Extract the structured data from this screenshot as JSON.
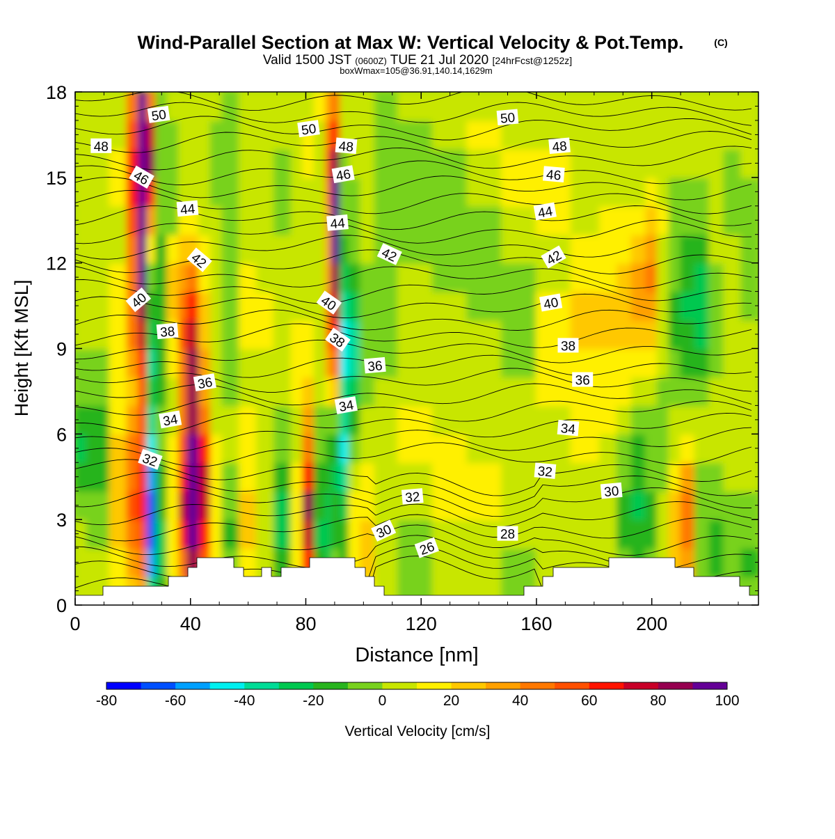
{
  "chart_data": {
    "type": "heatmap",
    "title": "Wind-Parallel Section at Max W: Vertical Velocity & Pot.Temp.",
    "title_mark": "(C)",
    "subtitle_parts": [
      "Valid 1500 JST",
      "(0600Z)",
      "TUE 21 Jul 2020",
      "[24hrFcst@1252z]"
    ],
    "subtitle2": "boxWmax=105@36.91,140.14,1629m",
    "xlabel": "Distance [nm]",
    "ylabel": "Height [Kft MSL]",
    "xlim": [
      0,
      237
    ],
    "ylim": [
      0,
      18
    ],
    "x_ticks": [
      0,
      40,
      80,
      120,
      160,
      200
    ],
    "y_ticks": [
      0,
      3,
      6,
      9,
      12,
      15,
      18
    ],
    "colorbar": {
      "label": "Vertical Velocity [cm/s]",
      "ticks": [
        -80,
        -60,
        -40,
        -20,
        0,
        20,
        40,
        60,
        80,
        100
      ],
      "range": [
        -80,
        100
      ],
      "colors": [
        "#0000ff",
        "#0050ff",
        "#00a0ff",
        "#00f0f0",
        "#00dc96",
        "#00c850",
        "#28b41e",
        "#78d21e",
        "#c8e600",
        "#fff000",
        "#ffc800",
        "#ffa000",
        "#ff7800",
        "#ff5000",
        "#ff1400",
        "#c80028",
        "#960050",
        "#640096"
      ]
    },
    "wind_speed_cells": [
      {
        "x": 0,
        "w": 4,
        "rows": [
          0,
          0,
          0,
          -5,
          -15,
          -25,
          -20,
          -10,
          -5,
          0,
          0,
          0,
          0,
          0,
          0,
          0,
          0,
          0
        ]
      },
      {
        "x": 4,
        "w": 8,
        "rows": [
          0,
          0,
          -5,
          -10,
          -18,
          -20,
          -15,
          -8,
          -2,
          2,
          5,
          5,
          0,
          0,
          0,
          0,
          5,
          5
        ]
      },
      {
        "x": 12,
        "w": 6,
        "rows": [
          10,
          15,
          20,
          25,
          25,
          20,
          15,
          10,
          10,
          15,
          15,
          10,
          5,
          5,
          10,
          10,
          5,
          5
        ]
      },
      {
        "x": 18,
        "w": 4,
        "rows": [
          25,
          35,
          45,
          50,
          45,
          40,
          30,
          25,
          30,
          40,
          45,
          40,
          40,
          50,
          60,
          60,
          50,
          40
        ]
      },
      {
        "x": 22,
        "w": 3,
        "rows": [
          30,
          40,
          55,
          60,
          60,
          55,
          50,
          55,
          65,
          75,
          85,
          90,
          95,
          100,
          100,
          100,
          95,
          90
        ]
      },
      {
        "x": 25,
        "w": 3,
        "rows": [
          -40,
          -55,
          -65,
          -70,
          -60,
          -45,
          -35,
          -30,
          -35,
          -30,
          -20,
          -10,
          10,
          30,
          60,
          80,
          70,
          40
        ]
      },
      {
        "x": 28,
        "w": 4,
        "rows": [
          -20,
          -25,
          -25,
          -20,
          -15,
          -10,
          -10,
          -15,
          -20,
          -20,
          -20,
          -15,
          -15,
          -10,
          -10,
          -10,
          -10,
          -5
        ]
      },
      {
        "x": 32,
        "w": 4,
        "rows": [
          5,
          10,
          15,
          15,
          10,
          10,
          5,
          5,
          10,
          15,
          20,
          20,
          10,
          -5,
          -10,
          -10,
          -5,
          0
        ]
      },
      {
        "x": 36,
        "w": 3,
        "rows": [
          30,
          45,
          60,
          70,
          65,
          55,
          45,
          40,
          45,
          50,
          40,
          30,
          20,
          10,
          5,
          0,
          0,
          0
        ]
      },
      {
        "x": 39,
        "w": 4,
        "rows": [
          60,
          80,
          95,
          100,
          100,
          95,
          85,
          80,
          85,
          75,
          60,
          45,
          25,
          10,
          5,
          0,
          0,
          0
        ]
      },
      {
        "x": 43,
        "w": 4,
        "rows": [
          40,
          55,
          65,
          70,
          70,
          60,
          45,
          35,
          30,
          25,
          20,
          15,
          10,
          5,
          0,
          0,
          0,
          0
        ]
      },
      {
        "x": 47,
        "w": 4,
        "rows": [
          5,
          10,
          10,
          15,
          15,
          10,
          5,
          0,
          0,
          5,
          5,
          5,
          0,
          0,
          -5,
          -5,
          -5,
          0
        ]
      },
      {
        "x": 51,
        "w": 6,
        "rows": [
          -5,
          -10,
          -15,
          -10,
          -5,
          0,
          0,
          -5,
          -10,
          -10,
          -10,
          -5,
          -5,
          -5,
          -5,
          -5,
          -5,
          -5
        ]
      },
      {
        "x": 57,
        "w": 6,
        "rows": [
          10,
          15,
          20,
          20,
          15,
          15,
          10,
          5,
          5,
          10,
          10,
          10,
          5,
          5,
          0,
          0,
          0,
          5
        ]
      },
      {
        "x": 63,
        "w": 6,
        "rows": [
          0,
          5,
          5,
          5,
          0,
          0,
          0,
          0,
          5,
          10,
          10,
          5,
          0,
          0,
          5,
          5,
          0,
          0
        ]
      },
      {
        "x": 69,
        "w": 6,
        "rows": [
          -10,
          -20,
          -25,
          -25,
          -20,
          -10,
          -5,
          0,
          5,
          5,
          0,
          0,
          0,
          -5,
          -5,
          -5,
          0,
          0
        ]
      },
      {
        "x": 75,
        "w": 4,
        "rows": [
          10,
          15,
          15,
          15,
          10,
          5,
          5,
          10,
          10,
          10,
          5,
          0,
          0,
          0,
          0,
          5,
          5,
          5
        ]
      },
      {
        "x": 79,
        "w": 4,
        "rows": [
          40,
          60,
          75,
          80,
          65,
          45,
          30,
          20,
          15,
          10,
          5,
          5,
          5,
          5,
          5,
          10,
          10,
          5
        ]
      },
      {
        "x": 83,
        "w": 4,
        "rows": [
          -10,
          -20,
          -25,
          -20,
          -15,
          -10,
          -5,
          0,
          5,
          5,
          5,
          5,
          0,
          0,
          0,
          0,
          5,
          10
        ]
      },
      {
        "x": 87,
        "w": 2,
        "rows": [
          -20,
          -25,
          -30,
          -25,
          -20,
          -15,
          -10,
          10,
          30,
          40,
          40,
          35,
          30,
          30,
          40,
          50,
          40,
          30
        ]
      },
      {
        "x": 89,
        "w": 3,
        "rows": [
          -10,
          -10,
          -15,
          -20,
          -25,
          -20,
          -10,
          20,
          45,
          60,
          75,
          85,
          90,
          95,
          90,
          80,
          60,
          40
        ]
      },
      {
        "x": 92,
        "w": 3,
        "rows": [
          -10,
          -15,
          -20,
          -30,
          -40,
          -45,
          -40,
          -35,
          -45,
          -50,
          -40,
          -30,
          -20,
          -10,
          -10,
          -5,
          0,
          5
        ]
      },
      {
        "x": 95,
        "w": 4,
        "rows": [
          5,
          10,
          15,
          10,
          5,
          -10,
          -15,
          -25,
          -35,
          -35,
          -30,
          -20,
          -10,
          -5,
          -5,
          0,
          0,
          0
        ]
      },
      {
        "x": 99,
        "w": 5,
        "rows": [
          15,
          20,
          20,
          15,
          10,
          5,
          0,
          -5,
          -10,
          -10,
          -10,
          -5,
          0,
          0,
          0,
          0,
          0,
          0
        ]
      },
      {
        "x": 104,
        "w": 8,
        "rows": [
          0,
          5,
          5,
          5,
          5,
          0,
          0,
          0,
          -5,
          -5,
          -5,
          -10,
          -10,
          -10,
          -10,
          -5,
          -5,
          -5
        ]
      },
      {
        "x": 112,
        "w": 12,
        "rows": [
          -5,
          -5,
          -5,
          0,
          5,
          10,
          10,
          5,
          5,
          5,
          0,
          0,
          -5,
          -10,
          -10,
          -10,
          -5,
          0
        ]
      },
      {
        "x": 124,
        "w": 12,
        "rows": [
          0,
          0,
          5,
          10,
          10,
          10,
          5,
          5,
          5,
          0,
          0,
          -5,
          -10,
          -10,
          -10,
          -5,
          0,
          0
        ]
      },
      {
        "x": 136,
        "w": 12,
        "rows": [
          0,
          5,
          5,
          10,
          10,
          5,
          5,
          0,
          0,
          0,
          -5,
          -5,
          -5,
          -5,
          0,
          5,
          10,
          5
        ]
      },
      {
        "x": 148,
        "w": 12,
        "rows": [
          -5,
          -5,
          0,
          5,
          5,
          5,
          0,
          0,
          -5,
          -5,
          -5,
          -5,
          0,
          5,
          10,
          10,
          5,
          0
        ]
      },
      {
        "x": 160,
        "w": 12,
        "rows": [
          0,
          0,
          5,
          5,
          5,
          5,
          5,
          10,
          10,
          10,
          10,
          5,
          5,
          10,
          10,
          10,
          5,
          0
        ]
      },
      {
        "x": 172,
        "w": 10,
        "rows": [
          0,
          5,
          5,
          5,
          5,
          10,
          15,
          15,
          15,
          20,
          20,
          15,
          10,
          5,
          5,
          5,
          0,
          0
        ]
      },
      {
        "x": 182,
        "w": 6,
        "rows": [
          -5,
          0,
          0,
          0,
          0,
          5,
          10,
          15,
          15,
          20,
          20,
          15,
          10,
          10,
          5,
          5,
          0,
          0
        ]
      },
      {
        "x": 188,
        "w": 5,
        "rows": [
          -5,
          -10,
          -15,
          -15,
          -10,
          -5,
          5,
          10,
          15,
          20,
          20,
          20,
          15,
          10,
          5,
          0,
          0,
          0
        ]
      },
      {
        "x": 193,
        "w": 5,
        "rows": [
          -10,
          -15,
          -20,
          -25,
          -20,
          -15,
          -5,
          5,
          15,
          25,
          30,
          30,
          20,
          10,
          5,
          0,
          0,
          0
        ]
      },
      {
        "x": 198,
        "w": 4,
        "rows": [
          -5,
          -10,
          -15,
          -15,
          -10,
          -10,
          -5,
          0,
          10,
          20,
          30,
          40,
          30,
          20,
          10,
          5,
          0,
          0
        ]
      },
      {
        "x": 202,
        "w": 4,
        "rows": [
          0,
          5,
          5,
          0,
          -5,
          -10,
          -10,
          -5,
          0,
          5,
          5,
          5,
          5,
          10,
          5,
          0,
          0,
          0
        ]
      },
      {
        "x": 206,
        "w": 4,
        "rows": [
          10,
          20,
          25,
          20,
          10,
          5,
          0,
          -5,
          -10,
          -15,
          -15,
          -10,
          -5,
          -5,
          -5,
          0,
          0,
          0
        ]
      },
      {
        "x": 210,
        "w": 5,
        "rows": [
          20,
          35,
          45,
          45,
          30,
          15,
          5,
          -5,
          -15,
          -20,
          -25,
          -20,
          -15,
          -10,
          -5,
          0,
          0,
          0
        ]
      },
      {
        "x": 215,
        "w": 5,
        "rows": [
          -5,
          -10,
          -10,
          -10,
          -5,
          0,
          0,
          -5,
          -15,
          -25,
          -30,
          -25,
          -15,
          -10,
          -5,
          0,
          0,
          0
        ]
      },
      {
        "x": 220,
        "w": 5,
        "rows": [
          -10,
          -15,
          -15,
          -10,
          -5,
          0,
          0,
          0,
          -5,
          -5,
          -5,
          -5,
          0,
          0,
          5,
          5,
          0,
          0
        ]
      },
      {
        "x": 225,
        "w": 6,
        "rows": [
          -5,
          -10,
          -10,
          -5,
          0,
          5,
          5,
          5,
          0,
          0,
          0,
          0,
          0,
          -5,
          -5,
          -5,
          0,
          0
        ]
      },
      {
        "x": 231,
        "w": 6,
        "rows": [
          -10,
          -15,
          -10,
          -5,
          0,
          5,
          5,
          0,
          0,
          0,
          -5,
          -10,
          -10,
          -10,
          -5,
          0,
          0,
          0
        ]
      }
    ],
    "theta_contour_labels": [
      {
        "t": "50",
        "x": 29,
        "y": 17.2,
        "r": -8
      },
      {
        "t": "50",
        "x": 81,
        "y": 16.7,
        "r": -8
      },
      {
        "t": "50",
        "x": 150,
        "y": 17.1,
        "r": -5
      },
      {
        "t": "48",
        "x": 9,
        "y": 16.1,
        "r": 0
      },
      {
        "t": "48",
        "x": 94,
        "y": 16.1,
        "r": 5
      },
      {
        "t": "48",
        "x": 168,
        "y": 16.1,
        "r": -5
      },
      {
        "t": "46",
        "x": 23,
        "y": 15.0,
        "r": 30
      },
      {
        "t": "46",
        "x": 93,
        "y": 15.1,
        "r": -10
      },
      {
        "t": "46",
        "x": 166,
        "y": 15.1,
        "r": 5
      },
      {
        "t": "44",
        "x": 39,
        "y": 13.9,
        "r": -5
      },
      {
        "t": "44",
        "x": 91,
        "y": 13.4,
        "r": -5
      },
      {
        "t": "44",
        "x": 163,
        "y": 13.8,
        "r": -10
      },
      {
        "t": "42",
        "x": 43,
        "y": 12.1,
        "r": 40
      },
      {
        "t": "42",
        "x": 109,
        "y": 12.3,
        "r": 25
      },
      {
        "t": "42",
        "x": 166,
        "y": 12.2,
        "r": -30
      },
      {
        "t": "40",
        "x": 22,
        "y": 10.7,
        "r": -40
      },
      {
        "t": "40",
        "x": 88,
        "y": 10.6,
        "r": 35
      },
      {
        "t": "40",
        "x": 165,
        "y": 10.6,
        "r": -10
      },
      {
        "t": "38",
        "x": 32,
        "y": 9.6,
        "r": -5
      },
      {
        "t": "38",
        "x": 91,
        "y": 9.3,
        "r": 35
      },
      {
        "t": "38",
        "x": 171,
        "y": 9.1,
        "r": 0
      },
      {
        "t": "36",
        "x": 45,
        "y": 7.8,
        "r": -10
      },
      {
        "t": "36",
        "x": 104,
        "y": 8.4,
        "r": -5
      },
      {
        "t": "36",
        "x": 176,
        "y": 7.9,
        "r": 0
      },
      {
        "t": "34",
        "x": 33,
        "y": 6.5,
        "r": -10
      },
      {
        "t": "34",
        "x": 94,
        "y": 7.0,
        "r": -10
      },
      {
        "t": "34",
        "x": 171,
        "y": 6.2,
        "r": 5
      },
      {
        "t": "32",
        "x": 26,
        "y": 5.1,
        "r": 20
      },
      {
        "t": "32",
        "x": 117,
        "y": 3.8,
        "r": -5
      },
      {
        "t": "32",
        "x": 163,
        "y": 4.7,
        "r": 5
      },
      {
        "t": "30",
        "x": 107,
        "y": 2.6,
        "r": -25
      },
      {
        "t": "30",
        "x": 186,
        "y": 4.0,
        "r": -5
      },
      {
        "t": "28",
        "x": 150,
        "y": 2.5,
        "r": 0
      },
      {
        "t": "26",
        "x": 122,
        "y": 2.0,
        "r": -20
      }
    ]
  }
}
